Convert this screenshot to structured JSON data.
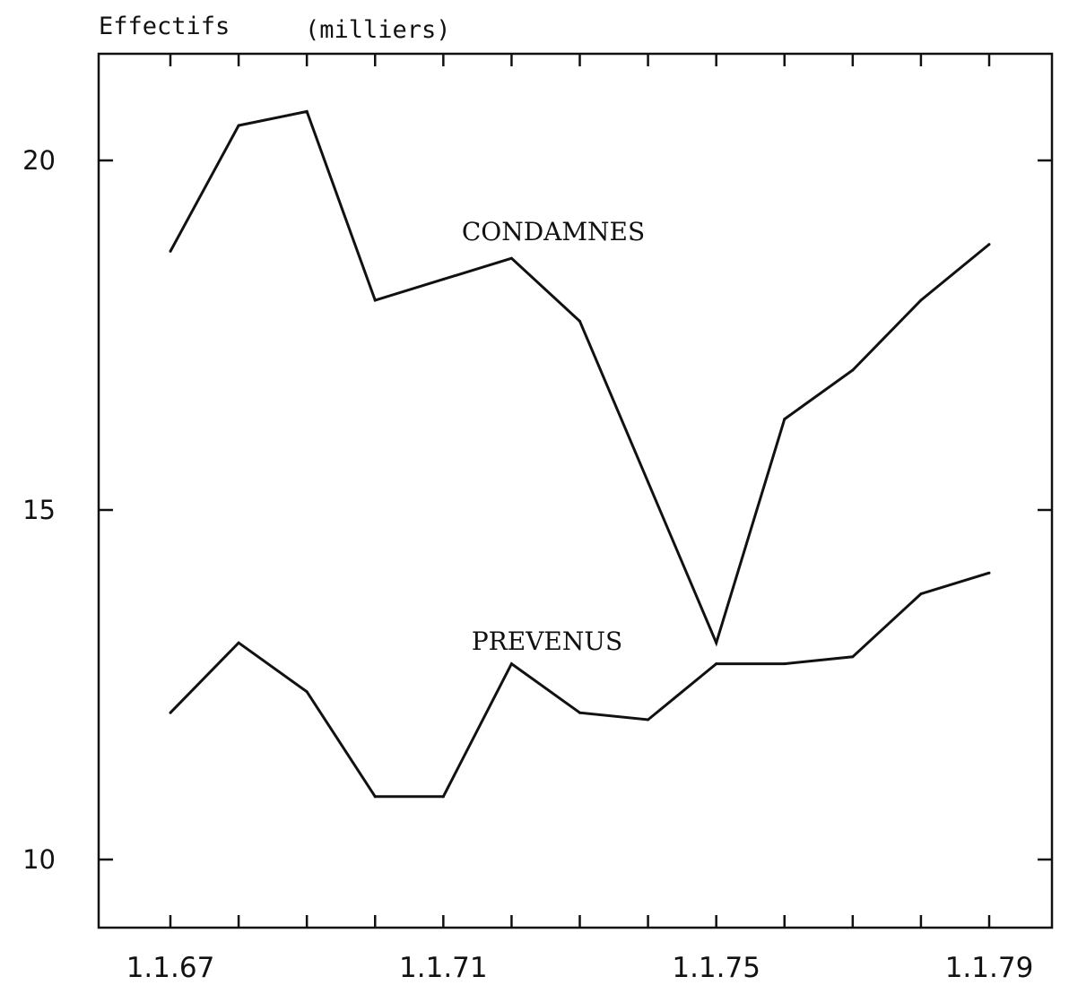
{
  "chart_data": {
    "type": "line",
    "title": "",
    "ylabel_main": "Effectifs",
    "ylabel_unit": "(milliers)",
    "xlabel": "",
    "ylim": [
      9,
      21.5
    ],
    "yticks": [
      10,
      15,
      20
    ],
    "ytick_labels": [
      "10",
      "15",
      "20"
    ],
    "x_tick_labels": [
      "1.1.67",
      "1.1.71",
      "1.1.75",
      "1.1.79"
    ],
    "x_tick_label_values": [
      1967,
      1971,
      1975,
      1979
    ],
    "x_ticks": [
      1967,
      1968,
      1969,
      1970,
      1971,
      1972,
      1973,
      1974,
      1975,
      1976,
      1977,
      1978,
      1979
    ],
    "xlim": [
      1966.2,
      1979.9
    ],
    "grid": false,
    "legend": "none",
    "series": [
      {
        "name": "CONDAMNES",
        "x": [
          1967,
          1968,
          1969,
          1970,
          1971,
          1972,
          1973,
          1974,
          1975,
          1976,
          1977,
          1978,
          1979
        ],
        "values": [
          18.7,
          20.5,
          20.7,
          18.0,
          18.3,
          18.6,
          17.7,
          15.4,
          13.1,
          16.3,
          17.0,
          18.0,
          18.8
        ]
      },
      {
        "name": "PREVENUS",
        "x": [
          1967,
          1968,
          1969,
          1970,
          1971,
          1972,
          1973,
          1974,
          1975,
          1976,
          1977,
          1978,
          1979
        ],
        "values": [
          12.1,
          13.1,
          12.4,
          10.9,
          10.9,
          12.8,
          12.1,
          12.0,
          12.8,
          12.8,
          12.9,
          13.8,
          14.1
        ]
      }
    ]
  }
}
